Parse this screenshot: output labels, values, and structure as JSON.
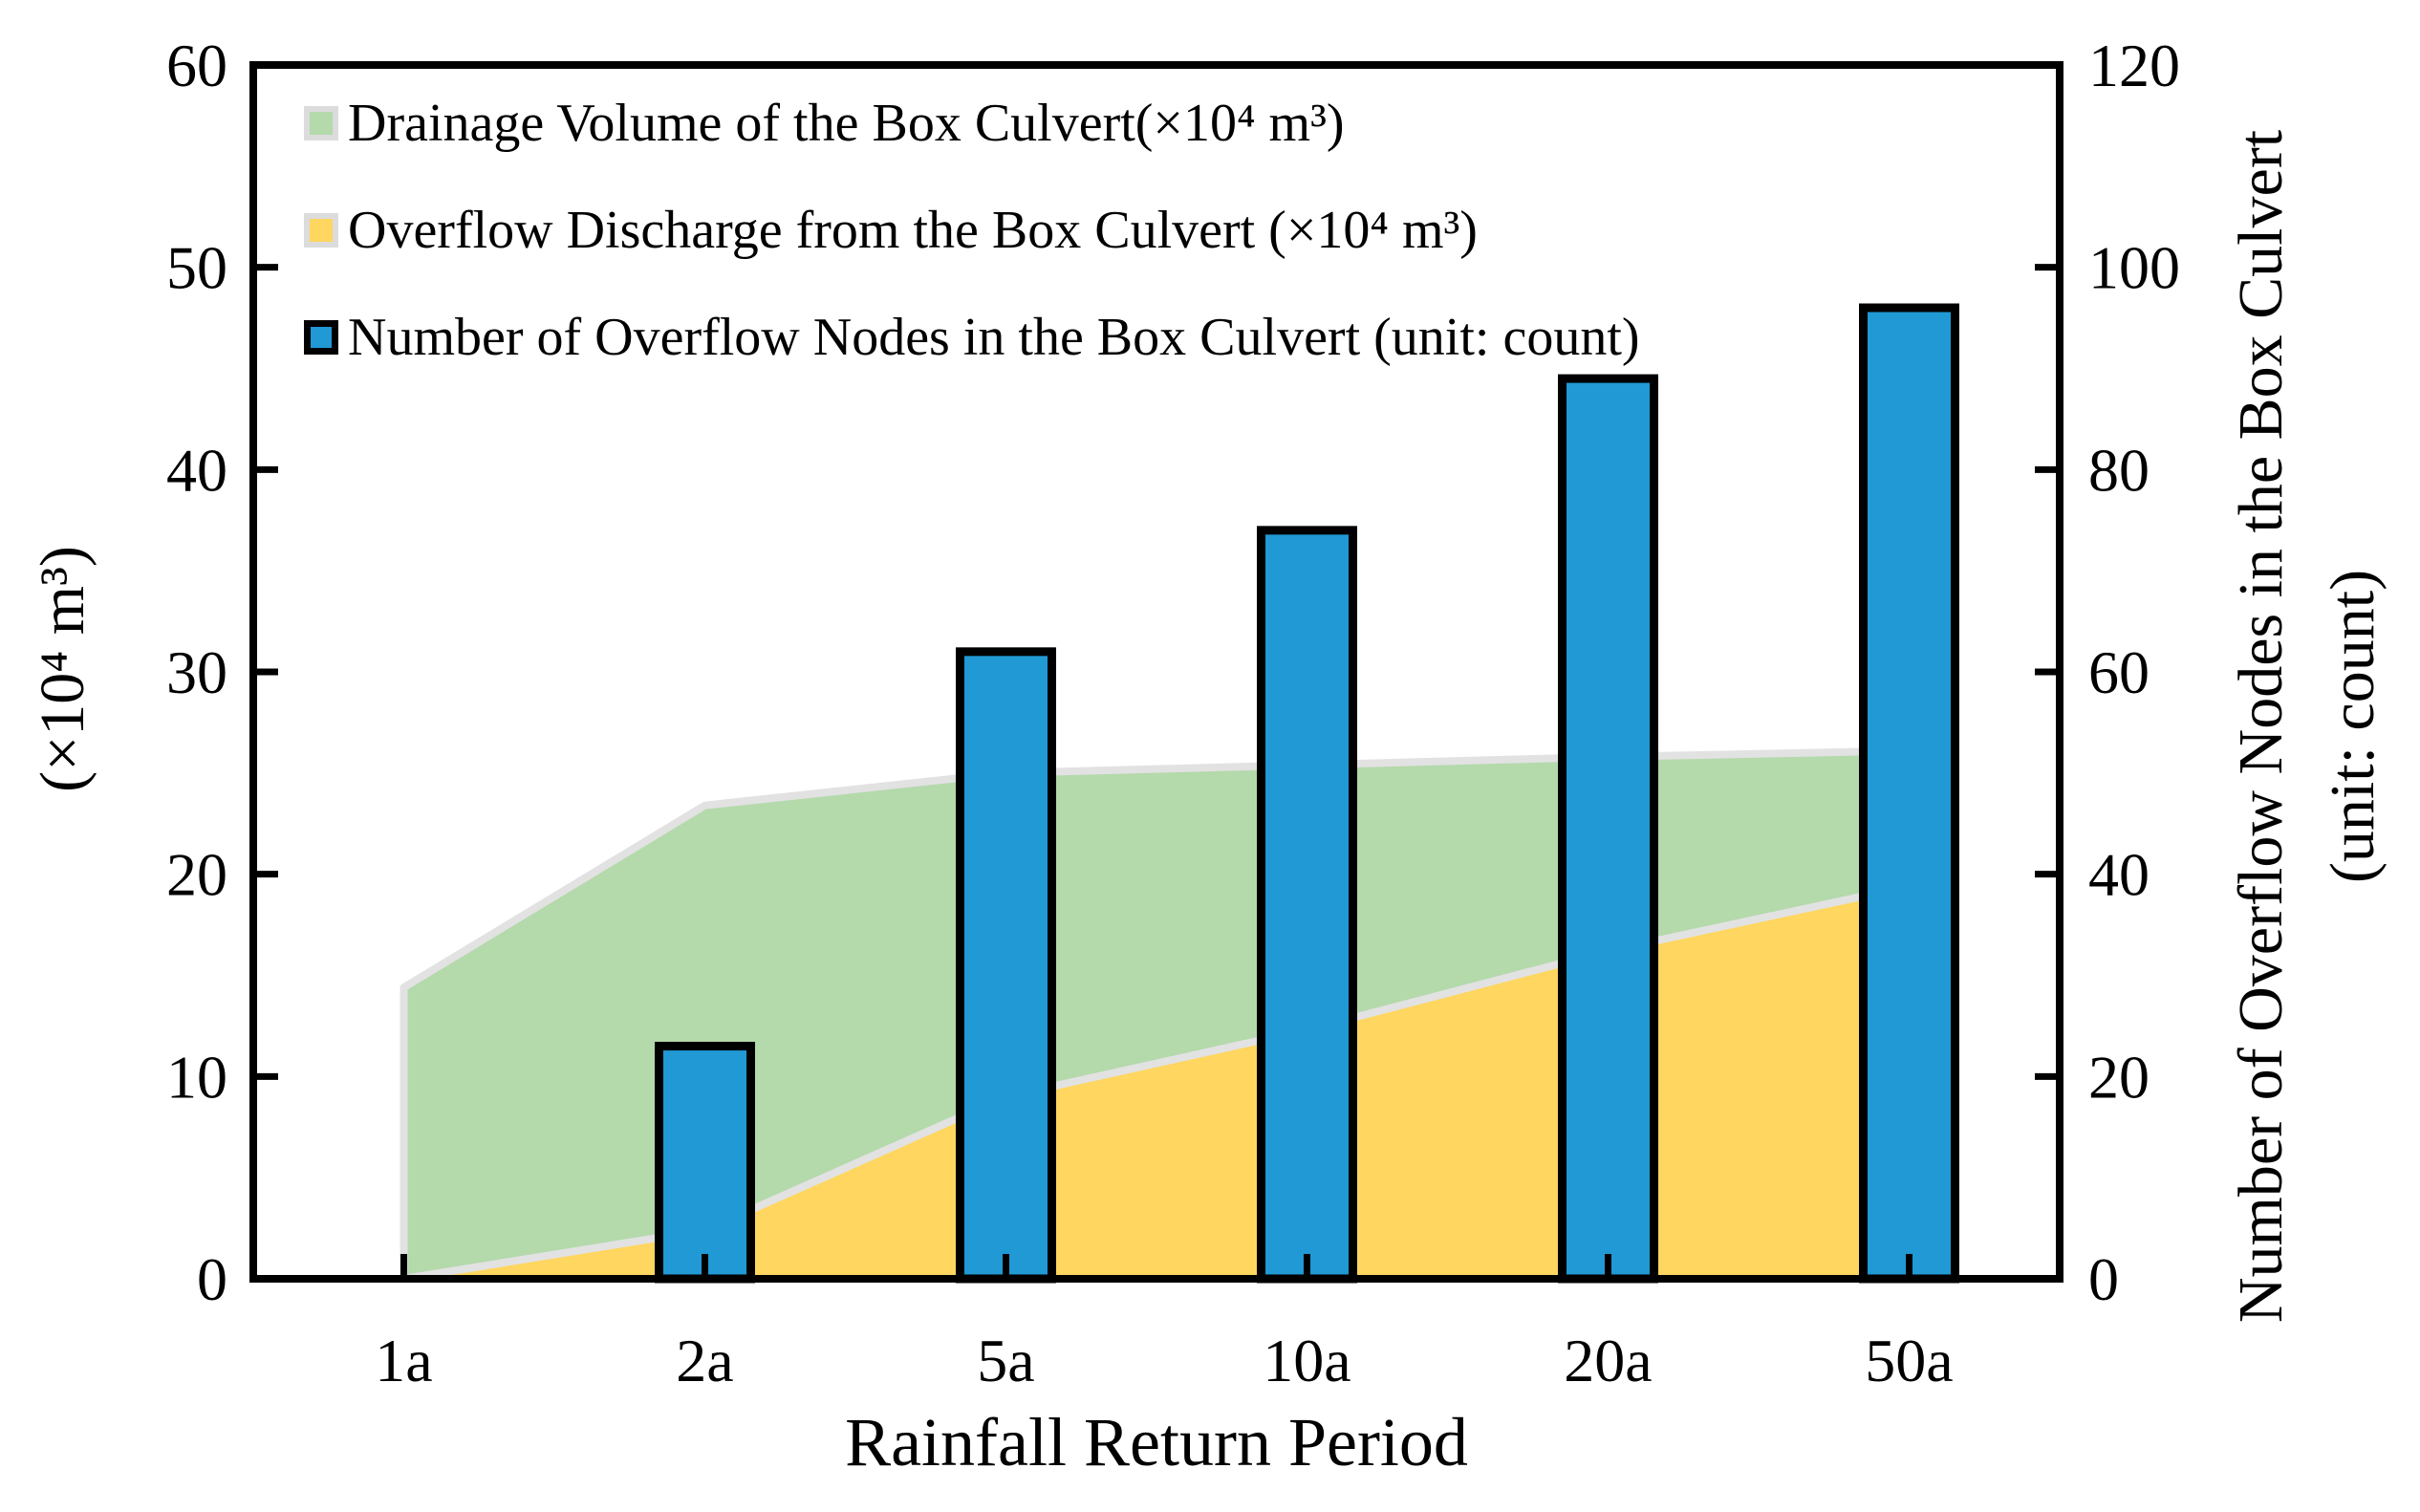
{
  "chart_data": {
    "type": "combo-area-bar",
    "categories": [
      "1a",
      "2a",
      "5a",
      "10a",
      "20a",
      "50a"
    ],
    "series": [
      {
        "name": "Drainage Volume of the Box Culvert(×10⁴ m³)",
        "type": "area",
        "axis": "left",
        "color": "#b4d9ab",
        "values": [
          14.4,
          23.4,
          25.0,
          25.4,
          25.8,
          26.1
        ]
      },
      {
        "name": "Overflow Discharge from the Box Culvert (×10⁴ m³)",
        "type": "area",
        "axis": "left",
        "color": "#ffd65f",
        "values": [
          0,
          2.4,
          9.0,
          12.3,
          16.2,
          19.4
        ]
      },
      {
        "name": "Number of Overflow Nodes in the Box Culvert (unit: count)",
        "type": "bar",
        "axis": "right",
        "color": "#2099d5",
        "values": [
          0,
          23,
          62,
          74,
          89,
          96
        ]
      }
    ],
    "left_axis": {
      "label": "(×10⁴ m³)",
      "min": 0,
      "max": 60,
      "step": 10,
      "ticks": [
        "0",
        "10",
        "20",
        "30",
        "40",
        "50",
        "60"
      ]
    },
    "right_axis": {
      "label_line1": "Number of Overflow Nodes in the Box Culvert",
      "label_line2": "(unit: count)",
      "min": 0,
      "max": 120,
      "step": 20,
      "ticks": [
        "0",
        "20",
        "40",
        "60",
        "80",
        "100",
        "120"
      ]
    },
    "x_axis": {
      "label": "Rainfall Return Period"
    },
    "legend_position": "top-left-inside",
    "grid": false,
    "styles": {
      "area_outline": "#e2e2e2",
      "bar_border": "#000000",
      "axis_color": "#000000"
    }
  }
}
